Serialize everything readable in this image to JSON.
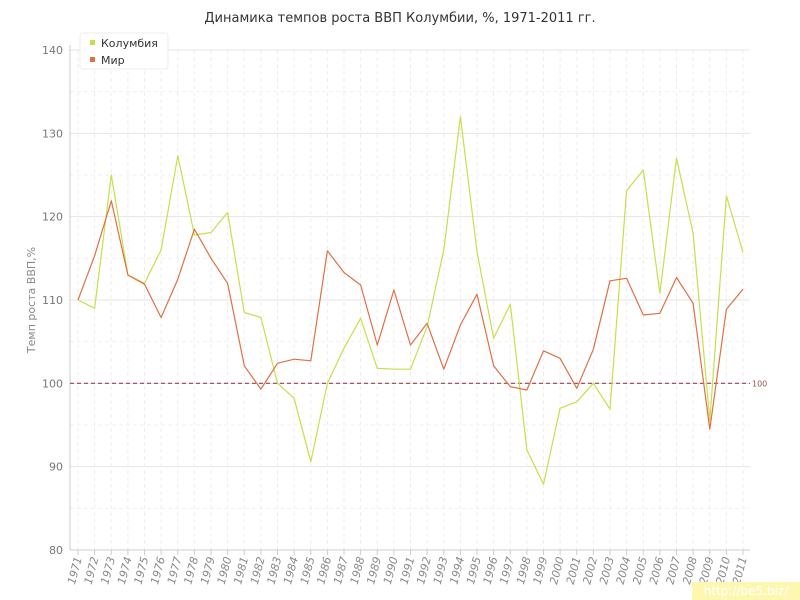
{
  "chart_data": {
    "type": "line",
    "title": "Динамика темпов роста ВВП Колумбии, %, 1971-2011 гг.",
    "ylabel": "Темп роста ВВП,%",
    "xlabel": "",
    "ylim": [
      80,
      140
    ],
    "yticks": [
      "80",
      "90",
      "100",
      "110",
      "120",
      "130",
      "140"
    ],
    "categories": [
      "1971",
      "1972",
      "1973",
      "1974",
      "1975",
      "1976",
      "1977",
      "1978",
      "1979",
      "1980",
      "1981",
      "1982",
      "1983",
      "1984",
      "1985",
      "1986",
      "1987",
      "1988",
      "1989",
      "1990",
      "1991",
      "1992",
      "1993",
      "1994",
      "1995",
      "1996",
      "1997",
      "1998",
      "1999",
      "2000",
      "2001",
      "2002",
      "2003",
      "2004",
      "2005",
      "2006",
      "2007",
      "2008",
      "2009",
      "2010",
      "2011"
    ],
    "series": [
      {
        "name": "Колумбия",
        "color": "#c6e04a",
        "values": [
          110,
          109,
          125,
          113,
          112,
          116,
          127.3,
          117.8,
          118.1,
          120.5,
          108.5,
          107.9,
          100,
          98.2,
          90.6,
          100,
          104.2,
          107.8,
          101.8,
          101.7,
          101.7,
          106.8,
          116,
          132,
          115.8,
          105.4,
          109.5,
          92,
          87.9,
          97,
          97.8,
          100,
          96.9,
          123.1,
          125.6,
          110.8,
          127,
          118,
          95.5,
          122.5,
          115.7
        ]
      },
      {
        "name": "Мир",
        "color": "#e07045",
        "values": [
          110,
          115.3,
          121.9,
          113,
          111.9,
          107.9,
          112.5,
          118.5,
          115,
          112,
          102.1,
          99.3,
          102.4,
          102.9,
          102.7,
          115.9,
          113.3,
          111.8,
          104.6,
          111.2,
          104.6,
          107.2,
          101.7,
          107,
          110.7,
          102.1,
          99.6,
          99.2,
          103.9,
          103,
          99.4,
          104.1,
          112.3,
          112.6,
          108.2,
          108.4,
          112.7,
          109.6,
          94.5,
          108.9,
          111.3
        ]
      }
    ],
    "reference_line": {
      "value": 100,
      "label": "100",
      "color": "#a04050"
    },
    "grid": true,
    "legend": "top-left"
  },
  "watermark": "http://be5.biz/"
}
